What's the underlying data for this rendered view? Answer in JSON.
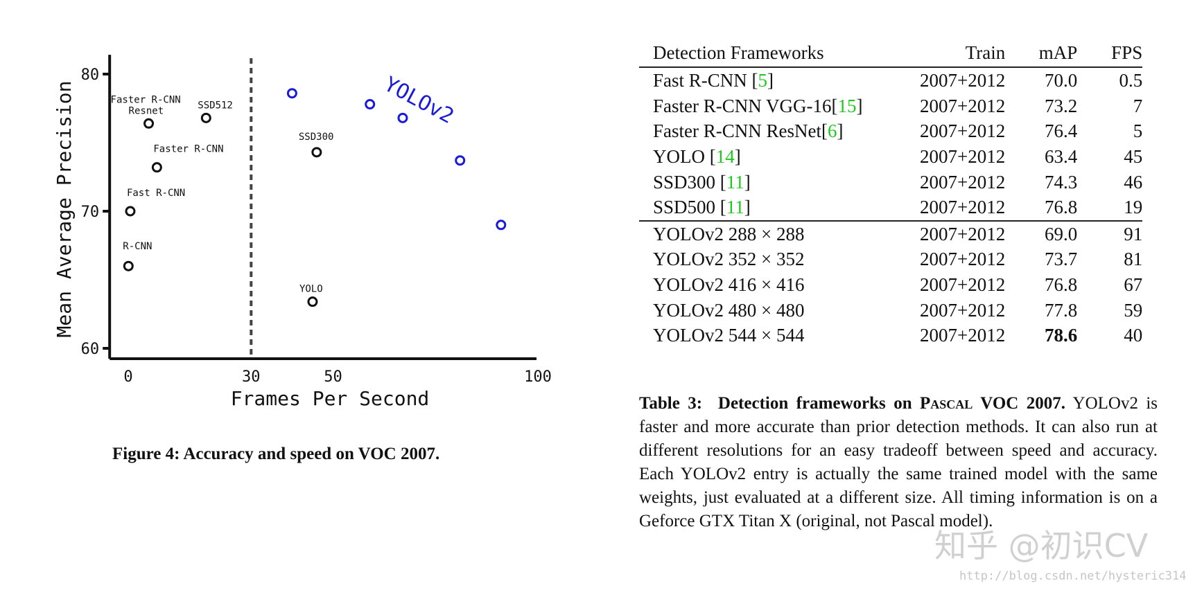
{
  "figure": {
    "caption_label": "Figure 4:",
    "caption_text": "Accuracy and speed on VOC 2007.",
    "chart_data": {
      "type": "scatter",
      "xlabel": "Frames Per Second",
      "ylabel": "Mean Average Precision",
      "x_ticks": [
        "0",
        "30",
        "50",
        "100"
      ],
      "x_tick_values": [
        0,
        30,
        50,
        100
      ],
      "y_ticks": [
        "60",
        "70",
        "80"
      ],
      "y_tick_values": [
        60,
        70,
        80
      ],
      "xlim": [
        -2,
        100
      ],
      "ylim": [
        60,
        80.5
      ],
      "vline_x": 30,
      "series": [
        {
          "color": "#111111",
          "points": [
            {
              "label": "R-CNN",
              "x": 0.05,
              "y": 66.0
            },
            {
              "label": "Fast R-CNN",
              "x": 0.5,
              "y": 70.0
            },
            {
              "label": "Faster R-CNN",
              "x": 7,
              "y": 73.2
            },
            {
              "label": "Faster R-CNN Resnet",
              "x": 5,
              "y": 76.4
            },
            {
              "label": "SSD512",
              "x": 19,
              "y": 76.8
            },
            {
              "label": "SSD300",
              "x": 46,
              "y": 74.3
            },
            {
              "label": "YOLO",
              "x": 45,
              "y": 63.4
            }
          ]
        },
        {
          "name": "YOLOv2",
          "color": "#1a1adb",
          "points": [
            {
              "x": 40,
              "y": 78.6
            },
            {
              "x": 59,
              "y": 77.8
            },
            {
              "x": 67,
              "y": 76.8
            },
            {
              "x": 81,
              "y": 73.7
            },
            {
              "x": 91,
              "y": 69.0
            }
          ]
        }
      ]
    }
  },
  "table": {
    "headers": [
      "Detection Frameworks",
      "Train",
      "mAP",
      "FPS"
    ],
    "rows": [
      {
        "name": "Fast R-CNN [",
        "ref": "5",
        "close": "]",
        "train": "2007+2012",
        "map": "70.0",
        "fps": "0.5"
      },
      {
        "name": "Faster R-CNN VGG-16[",
        "ref": "15",
        "close": "]",
        "train": "2007+2012",
        "map": "73.2",
        "fps": "7"
      },
      {
        "name": "Faster R-CNN ResNet[",
        "ref": "6",
        "close": "]",
        "train": "2007+2012",
        "map": "76.4",
        "fps": "5"
      },
      {
        "name": "YOLO [",
        "ref": "14",
        "close": "]",
        "train": "2007+2012",
        "map": "63.4",
        "fps": "45"
      },
      {
        "name": "SSD300 [",
        "ref": "11",
        "close": "]",
        "train": "2007+2012",
        "map": "74.3",
        "fps": "46"
      },
      {
        "name": "SSD500 [",
        "ref": "11",
        "close": "]",
        "train": "2007+2012",
        "map": "76.8",
        "fps": "19"
      },
      {
        "name": "YOLOv2 288 × 288",
        "ref": "",
        "close": "",
        "train": "2007+2012",
        "map": "69.0",
        "fps": "91"
      },
      {
        "name": "YOLOv2 352 × 352",
        "ref": "",
        "close": "",
        "train": "2007+2012",
        "map": "73.7",
        "fps": "81"
      },
      {
        "name": "YOLOv2 416 × 416",
        "ref": "",
        "close": "",
        "train": "2007+2012",
        "map": "76.8",
        "fps": "67"
      },
      {
        "name": "YOLOv2 480 × 480",
        "ref": "",
        "close": "",
        "train": "2007+2012",
        "map": "77.8",
        "fps": "59"
      },
      {
        "name": "YOLOv2 544 × 544",
        "ref": "",
        "close": "",
        "train": "2007+2012",
        "map": "78.6",
        "fps": "40"
      }
    ],
    "caption_label": "Table 3:",
    "caption_title_a": "Detection frameworks on ",
    "caption_title_sc": "Pascal",
    "caption_title_b": " VOC 2007.",
    "caption_body": "YOLOv2 is faster and more accurate than prior detection methods. It can also run at different resolutions for an easy tradeoff between speed and accuracy. Each YOLOv2 entry is actually the same trained model with the same weights, just evaluated at a different size. All timing information is on a Geforce GTX Titan X (original, not Pascal model)."
  },
  "watermark": {
    "main": "知乎 @初识CV",
    "url": "http://blog.csdn.net/hysteric314"
  }
}
